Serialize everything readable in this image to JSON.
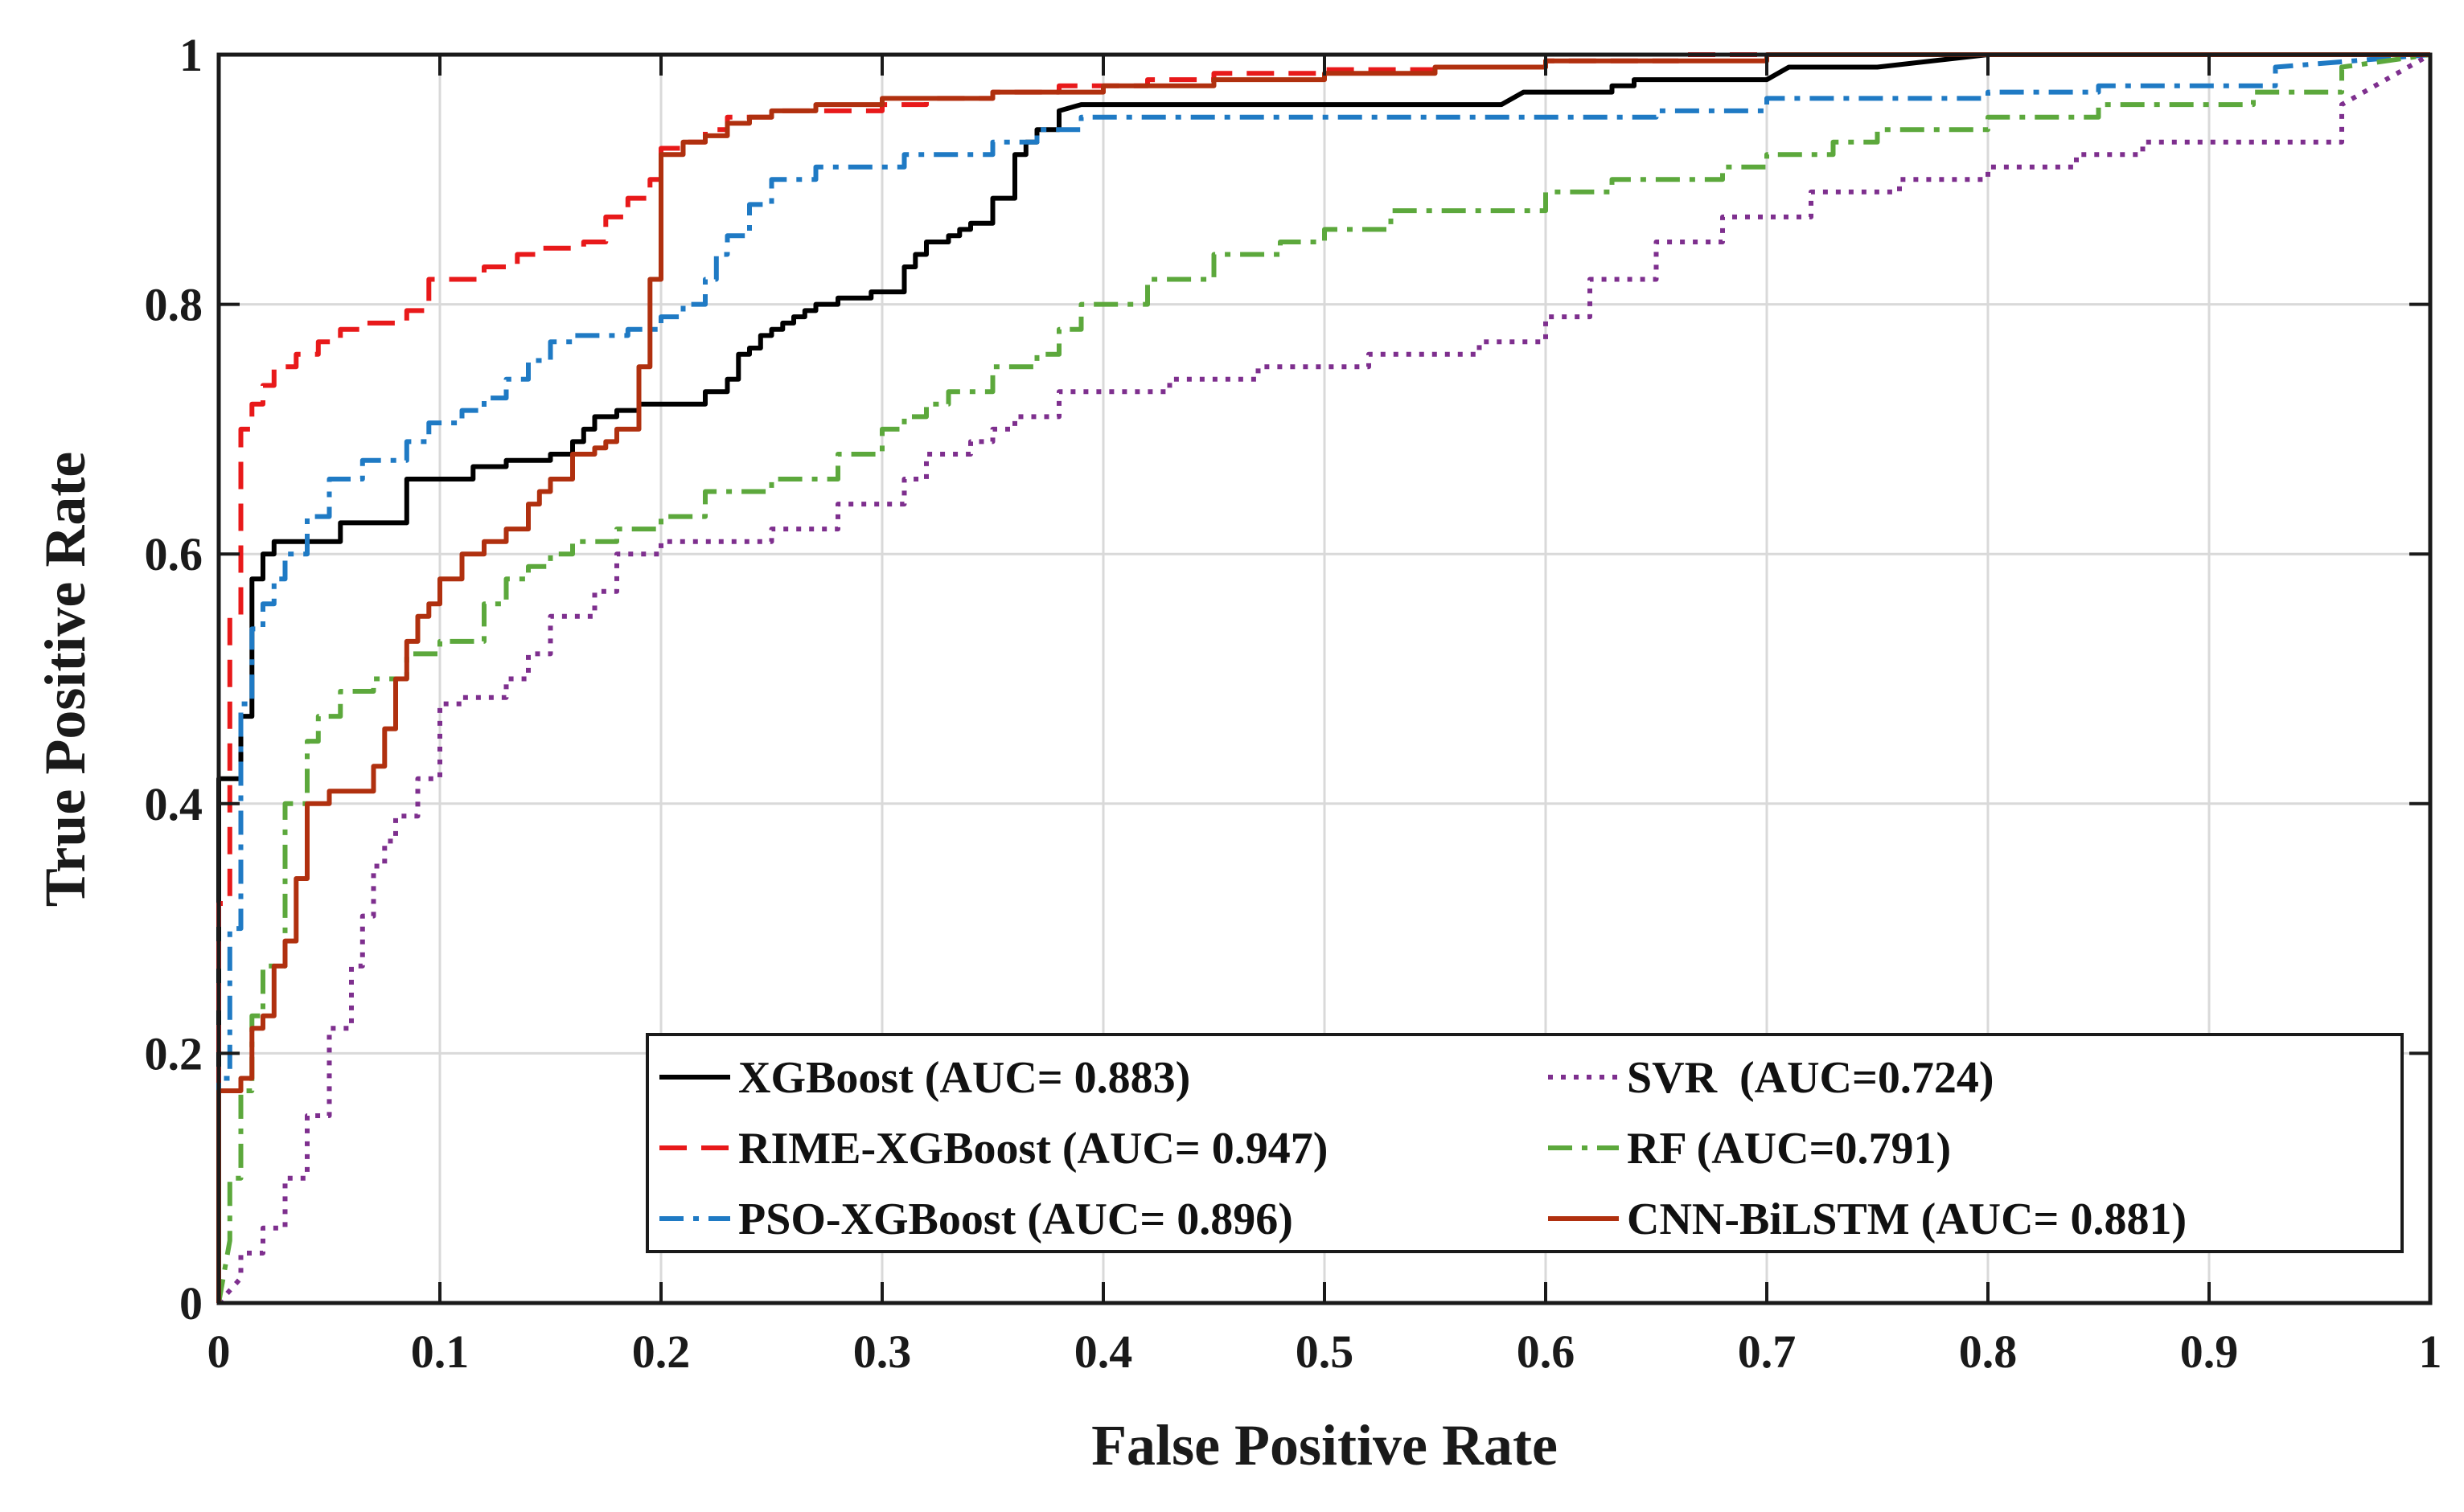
{
  "chart_data": {
    "type": "line",
    "title": "",
    "xlabel": "False Positive Rate",
    "ylabel": "True Positive Rate",
    "xlim": [
      0,
      1
    ],
    "ylim": [
      0,
      1
    ],
    "grid": true,
    "legend_position": "bottom-right",
    "x_ticks": [
      {
        "value": 0,
        "label": "0"
      },
      {
        "value": 0.1,
        "label": "0.1"
      },
      {
        "value": 0.2,
        "label": "0.2"
      },
      {
        "value": 0.3,
        "label": "0.3"
      },
      {
        "value": 0.4,
        "label": "0.4"
      },
      {
        "value": 0.5,
        "label": "0.5"
      },
      {
        "value": 0.6,
        "label": "0.6"
      },
      {
        "value": 0.7,
        "label": "0.7"
      },
      {
        "value": 0.8,
        "label": "0.8"
      },
      {
        "value": 0.9,
        "label": "0.9"
      },
      {
        "value": 1,
        "label": "1"
      }
    ],
    "y_ticks": [
      {
        "value": 0,
        "label": "0"
      },
      {
        "value": 0.2,
        "label": "0.2"
      },
      {
        "value": 0.4,
        "label": "0.4"
      },
      {
        "value": 0.6,
        "label": "0.6"
      },
      {
        "value": 0.8,
        "label": "0.8"
      },
      {
        "value": 1,
        "label": "1"
      }
    ],
    "series": [
      {
        "name": "XGBoost (AUC= 0.883)",
        "color": "#000000",
        "dash": "solid",
        "x": [
          0,
          0,
          0.01,
          0.01,
          0.015,
          0.015,
          0.02,
          0.02,
          0.025,
          0.025,
          0.055,
          0.055,
          0.085,
          0.085,
          0.115,
          0.115,
          0.13,
          0.13,
          0.15,
          0.15,
          0.16,
          0.16,
          0.165,
          0.165,
          0.17,
          0.17,
          0.18,
          0.18,
          0.19,
          0.19,
          0.22,
          0.22,
          0.23,
          0.23,
          0.235,
          0.235,
          0.24,
          0.24,
          0.245,
          0.245,
          0.25,
          0.25,
          0.255,
          0.255,
          0.26,
          0.26,
          0.265,
          0.265,
          0.27,
          0.27,
          0.28,
          0.28,
          0.295,
          0.295,
          0.31,
          0.31,
          0.315,
          0.315,
          0.32,
          0.32,
          0.33,
          0.33,
          0.335,
          0.335,
          0.34,
          0.34,
          0.35,
          0.35,
          0.36,
          0.36,
          0.365,
          0.365,
          0.37,
          0.37,
          0.38,
          0.38,
          0.39,
          0.58,
          0.59,
          0.63,
          0.63,
          0.64,
          0.64,
          0.7,
          0.71,
          0.72,
          0.75,
          0.8,
          0.8,
          1
        ],
        "y": [
          0,
          0.42,
          0.42,
          0.47,
          0.47,
          0.58,
          0.58,
          0.6,
          0.6,
          0.61,
          0.61,
          0.625,
          0.625,
          0.66,
          0.66,
          0.67,
          0.67,
          0.675,
          0.675,
          0.68,
          0.68,
          0.69,
          0.69,
          0.7,
          0.7,
          0.71,
          0.71,
          0.715,
          0.715,
          0.72,
          0.72,
          0.73,
          0.73,
          0.74,
          0.74,
          0.76,
          0.76,
          0.765,
          0.765,
          0.775,
          0.775,
          0.78,
          0.78,
          0.785,
          0.785,
          0.79,
          0.79,
          0.795,
          0.795,
          0.8,
          0.8,
          0.805,
          0.805,
          0.81,
          0.81,
          0.83,
          0.83,
          0.84,
          0.84,
          0.85,
          0.85,
          0.855,
          0.855,
          0.86,
          0.86,
          0.865,
          0.865,
          0.885,
          0.885,
          0.92,
          0.92,
          0.93,
          0.93,
          0.94,
          0.94,
          0.955,
          0.96,
          0.96,
          0.97,
          0.97,
          0.975,
          0.975,
          0.98,
          0.98,
          0.99,
          0.99,
          0.99,
          1,
          1,
          1
        ]
      },
      {
        "name": "RIME-XGBoost (AUC= 0.947)",
        "color": "#e8191a",
        "dash": "dash",
        "x": [
          0,
          0,
          0.005,
          0.005,
          0.01,
          0.01,
          0.015,
          0.015,
          0.02,
          0.02,
          0.025,
          0.025,
          0.035,
          0.035,
          0.045,
          0.045,
          0.055,
          0.055,
          0.065,
          0.065,
          0.085,
          0.085,
          0.095,
          0.095,
          0.12,
          0.12,
          0.135,
          0.135,
          0.145,
          0.145,
          0.165,
          0.165,
          0.175,
          0.175,
          0.185,
          0.185,
          0.195,
          0.195,
          0.2,
          0.2,
          0.21,
          0.21,
          0.22,
          0.22,
          0.23,
          0.23,
          0.25,
          0.25,
          0.3,
          0.3,
          0.32,
          0.32,
          0.35,
          0.35,
          0.38,
          0.38,
          0.42,
          0.42,
          0.45,
          0.45,
          0.5,
          0.5,
          0.55,
          0.55,
          0.6,
          0.6,
          0.66,
          0.66,
          0.7,
          0.75,
          0.8,
          1
        ],
        "y": [
          0,
          0.32,
          0.32,
          0.55,
          0.55,
          0.7,
          0.7,
          0.72,
          0.72,
          0.735,
          0.735,
          0.75,
          0.75,
          0.76,
          0.76,
          0.77,
          0.77,
          0.78,
          0.78,
          0.785,
          0.785,
          0.795,
          0.795,
          0.82,
          0.82,
          0.83,
          0.83,
          0.84,
          0.84,
          0.845,
          0.845,
          0.85,
          0.85,
          0.87,
          0.87,
          0.885,
          0.885,
          0.9,
          0.9,
          0.925,
          0.925,
          0.93,
          0.93,
          0.94,
          0.94,
          0.95,
          0.95,
          0.955,
          0.955,
          0.96,
          0.96,
          0.965,
          0.965,
          0.97,
          0.97,
          0.975,
          0.975,
          0.98,
          0.98,
          0.985,
          0.985,
          0.988,
          0.988,
          0.99,
          0.99,
          0.995,
          0.995,
          1,
          1,
          1,
          1,
          1
        ]
      },
      {
        "name": "PSO-XGBoost (AUC= 0.896)",
        "color": "#1f7ac4",
        "dash": "dashdot",
        "x": [
          0,
          0,
          0.005,
          0.005,
          0.01,
          0.01,
          0.015,
          0.015,
          0.02,
          0.02,
          0.025,
          0.025,
          0.03,
          0.03,
          0.04,
          0.04,
          0.05,
          0.05,
          0.065,
          0.065,
          0.085,
          0.085,
          0.095,
          0.095,
          0.11,
          0.11,
          0.12,
          0.12,
          0.13,
          0.13,
          0.14,
          0.14,
          0.15,
          0.15,
          0.16,
          0.16,
          0.185,
          0.185,
          0.2,
          0.2,
          0.21,
          0.21,
          0.22,
          0.22,
          0.225,
          0.225,
          0.23,
          0.23,
          0.24,
          0.24,
          0.25,
          0.25,
          0.27,
          0.27,
          0.31,
          0.31,
          0.35,
          0.35,
          0.37,
          0.37,
          0.39,
          0.39,
          0.65,
          0.65,
          0.7,
          0.7,
          0.8,
          0.8,
          0.85,
          0.85,
          0.93,
          0.93,
          1
        ],
        "y": [
          0,
          0.18,
          0.18,
          0.3,
          0.3,
          0.48,
          0.48,
          0.54,
          0.54,
          0.56,
          0.56,
          0.58,
          0.58,
          0.6,
          0.6,
          0.63,
          0.63,
          0.66,
          0.66,
          0.675,
          0.675,
          0.69,
          0.69,
          0.705,
          0.705,
          0.715,
          0.715,
          0.725,
          0.725,
          0.74,
          0.74,
          0.755,
          0.755,
          0.77,
          0.77,
          0.775,
          0.775,
          0.78,
          0.78,
          0.79,
          0.79,
          0.8,
          0.8,
          0.82,
          0.82,
          0.84,
          0.84,
          0.855,
          0.855,
          0.88,
          0.88,
          0.9,
          0.9,
          0.91,
          0.91,
          0.92,
          0.92,
          0.93,
          0.93,
          0.94,
          0.94,
          0.95,
          0.95,
          0.955,
          0.955,
          0.965,
          0.965,
          0.97,
          0.97,
          0.975,
          0.975,
          0.99,
          1
        ]
      },
      {
        "name": "SVR  (AUC=0.724)",
        "color": "#7e2f8e",
        "dash": "dot",
        "x": [
          0,
          0.01,
          0.01,
          0.02,
          0.02,
          0.03,
          0.03,
          0.04,
          0.04,
          0.05,
          0.05,
          0.06,
          0.06,
          0.065,
          0.065,
          0.07,
          0.07,
          0.075,
          0.075,
          0.08,
          0.08,
          0.09,
          0.09,
          0.1,
          0.1,
          0.11,
          0.11,
          0.13,
          0.13,
          0.14,
          0.14,
          0.15,
          0.15,
          0.17,
          0.17,
          0.18,
          0.18,
          0.2,
          0.2,
          0.25,
          0.25,
          0.28,
          0.28,
          0.31,
          0.31,
          0.32,
          0.32,
          0.34,
          0.34,
          0.35,
          0.35,
          0.36,
          0.36,
          0.38,
          0.38,
          0.43,
          0.43,
          0.47,
          0.47,
          0.52,
          0.52,
          0.57,
          0.57,
          0.6,
          0.6,
          0.62,
          0.62,
          0.65,
          0.65,
          0.68,
          0.68,
          0.72,
          0.72,
          0.76,
          0.76,
          0.8,
          0.8,
          0.84,
          0.84,
          0.87,
          0.87,
          0.96,
          0.96,
          1
        ],
        "y": [
          0,
          0.02,
          0.04,
          0.04,
          0.06,
          0.06,
          0.1,
          0.1,
          0.15,
          0.15,
          0.22,
          0.22,
          0.27,
          0.27,
          0.31,
          0.31,
          0.35,
          0.35,
          0.37,
          0.37,
          0.39,
          0.39,
          0.42,
          0.42,
          0.48,
          0.48,
          0.485,
          0.485,
          0.5,
          0.5,
          0.52,
          0.52,
          0.55,
          0.55,
          0.57,
          0.57,
          0.6,
          0.6,
          0.61,
          0.61,
          0.62,
          0.62,
          0.64,
          0.64,
          0.66,
          0.66,
          0.68,
          0.68,
          0.69,
          0.69,
          0.7,
          0.7,
          0.71,
          0.71,
          0.73,
          0.73,
          0.74,
          0.74,
          0.75,
          0.75,
          0.76,
          0.76,
          0.77,
          0.77,
          0.79,
          0.79,
          0.82,
          0.82,
          0.85,
          0.85,
          0.87,
          0.87,
          0.89,
          0.89,
          0.9,
          0.9,
          0.91,
          0.91,
          0.92,
          0.92,
          0.93,
          0.93,
          0.96,
          1
        ]
      },
      {
        "name": "RF (AUC=0.791)",
        "color": "#5ca83c",
        "dash": "dashdot",
        "x": [
          0,
          0.005,
          0.005,
          0.01,
          0.01,
          0.015,
          0.015,
          0.02,
          0.02,
          0.03,
          0.03,
          0.04,
          0.04,
          0.045,
          0.045,
          0.055,
          0.055,
          0.07,
          0.07,
          0.085,
          0.085,
          0.1,
          0.1,
          0.12,
          0.12,
          0.13,
          0.13,
          0.14,
          0.14,
          0.15,
          0.15,
          0.16,
          0.16,
          0.18,
          0.18,
          0.2,
          0.2,
          0.22,
          0.22,
          0.25,
          0.25,
          0.28,
          0.28,
          0.3,
          0.3,
          0.31,
          0.31,
          0.32,
          0.32,
          0.33,
          0.33,
          0.35,
          0.35,
          0.37,
          0.37,
          0.38,
          0.38,
          0.39,
          0.39,
          0.42,
          0.42,
          0.45,
          0.45,
          0.48,
          0.48,
          0.5,
          0.5,
          0.53,
          0.53,
          0.6,
          0.6,
          0.63,
          0.63,
          0.68,
          0.68,
          0.7,
          0.7,
          0.73,
          0.73,
          0.75,
          0.75,
          0.8,
          0.8,
          0.85,
          0.85,
          0.92,
          0.92,
          0.96,
          0.96,
          1
        ],
        "y": [
          0,
          0.05,
          0.1,
          0.1,
          0.17,
          0.17,
          0.23,
          0.23,
          0.27,
          0.27,
          0.4,
          0.4,
          0.45,
          0.45,
          0.47,
          0.47,
          0.49,
          0.49,
          0.5,
          0.5,
          0.52,
          0.52,
          0.53,
          0.53,
          0.56,
          0.56,
          0.58,
          0.58,
          0.59,
          0.59,
          0.6,
          0.6,
          0.61,
          0.61,
          0.62,
          0.62,
          0.63,
          0.63,
          0.65,
          0.65,
          0.66,
          0.66,
          0.68,
          0.68,
          0.7,
          0.7,
          0.71,
          0.71,
          0.72,
          0.72,
          0.73,
          0.73,
          0.75,
          0.75,
          0.76,
          0.76,
          0.78,
          0.78,
          0.8,
          0.8,
          0.82,
          0.82,
          0.84,
          0.84,
          0.85,
          0.85,
          0.86,
          0.86,
          0.875,
          0.875,
          0.89,
          0.89,
          0.9,
          0.9,
          0.91,
          0.91,
          0.92,
          0.92,
          0.93,
          0.93,
          0.94,
          0.94,
          0.95,
          0.95,
          0.96,
          0.96,
          0.97,
          0.97,
          0.99,
          1
        ]
      },
      {
        "name": "CNN-BiLSTM (AUC= 0.881)",
        "color": "#b0300f",
        "dash": "solid",
        "x": [
          0,
          0,
          0.01,
          0.01,
          0.015,
          0.015,
          0.02,
          0.02,
          0.025,
          0.025,
          0.03,
          0.03,
          0.035,
          0.035,
          0.04,
          0.04,
          0.05,
          0.05,
          0.07,
          0.07,
          0.075,
          0.075,
          0.08,
          0.08,
          0.085,
          0.085,
          0.09,
          0.09,
          0.095,
          0.095,
          0.1,
          0.1,
          0.11,
          0.11,
          0.12,
          0.12,
          0.13,
          0.13,
          0.14,
          0.14,
          0.145,
          0.145,
          0.15,
          0.15,
          0.16,
          0.16,
          0.17,
          0.17,
          0.175,
          0.175,
          0.18,
          0.18,
          0.19,
          0.19,
          0.195,
          0.195,
          0.2,
          0.2,
          0.21,
          0.21,
          0.22,
          0.22,
          0.23,
          0.23,
          0.24,
          0.24,
          0.25,
          0.25,
          0.27,
          0.27,
          0.3,
          0.3,
          0.35,
          0.35,
          0.4,
          0.4,
          0.45,
          0.45,
          0.5,
          0.5,
          0.55,
          0.55,
          0.6,
          0.6,
          0.7,
          0.7,
          0.8,
          1
        ],
        "y": [
          0,
          0.17,
          0.17,
          0.18,
          0.18,
          0.22,
          0.22,
          0.23,
          0.23,
          0.27,
          0.27,
          0.29,
          0.29,
          0.34,
          0.34,
          0.4,
          0.4,
          0.41,
          0.41,
          0.43,
          0.43,
          0.46,
          0.46,
          0.5,
          0.5,
          0.53,
          0.53,
          0.55,
          0.55,
          0.56,
          0.56,
          0.58,
          0.58,
          0.6,
          0.6,
          0.61,
          0.61,
          0.62,
          0.62,
          0.64,
          0.64,
          0.65,
          0.65,
          0.66,
          0.66,
          0.68,
          0.68,
          0.685,
          0.685,
          0.69,
          0.69,
          0.7,
          0.7,
          0.75,
          0.75,
          0.82,
          0.82,
          0.92,
          0.92,
          0.93,
          0.93,
          0.935,
          0.935,
          0.945,
          0.945,
          0.95,
          0.95,
          0.955,
          0.955,
          0.96,
          0.96,
          0.965,
          0.965,
          0.97,
          0.97,
          0.975,
          0.975,
          0.98,
          0.98,
          0.985,
          0.985,
          0.99,
          0.99,
          0.995,
          0.995,
          1,
          1,
          1
        ]
      }
    ]
  }
}
